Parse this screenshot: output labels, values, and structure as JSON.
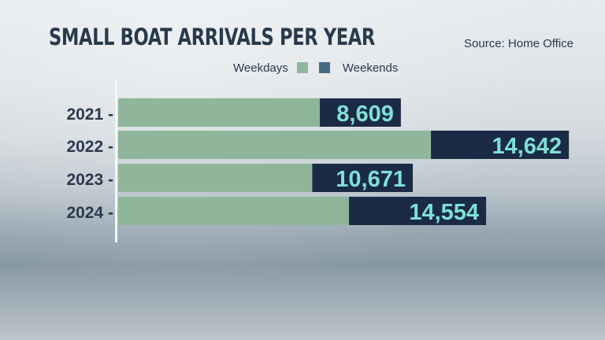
{
  "title": "SMALL BOAT ARRIVALS PER YEAR",
  "source": "Source: Home Office",
  "legend": {
    "weekdays": "Weekdays",
    "weekends": "Weekends"
  },
  "colors": {
    "weekdays": "#8fb69a",
    "weekends": "#1b2b45",
    "weekends_legend": "#476a82",
    "value_text": "#7fe0d8",
    "axis_text": "#2a3a4d"
  },
  "chart_data": {
    "type": "bar",
    "orientation": "horizontal",
    "stacked": true,
    "title": "SMALL BOAT ARRIVALS PER YEAR",
    "categories": [
      "2021",
      "2022",
      "2023",
      "2024"
    ],
    "series": [
      {
        "name": "Weekdays",
        "values": [
          21400,
          33200,
          20600,
          24500
        ]
      },
      {
        "name": "Weekends",
        "values": [
          8609,
          14642,
          10671,
          14554
        ]
      }
    ],
    "data_labels": [
      "8,609",
      "14,642",
      "10,671",
      "14,554"
    ],
    "xlim": [
      0,
      49000
    ],
    "grid": false,
    "legend_position": "top"
  }
}
